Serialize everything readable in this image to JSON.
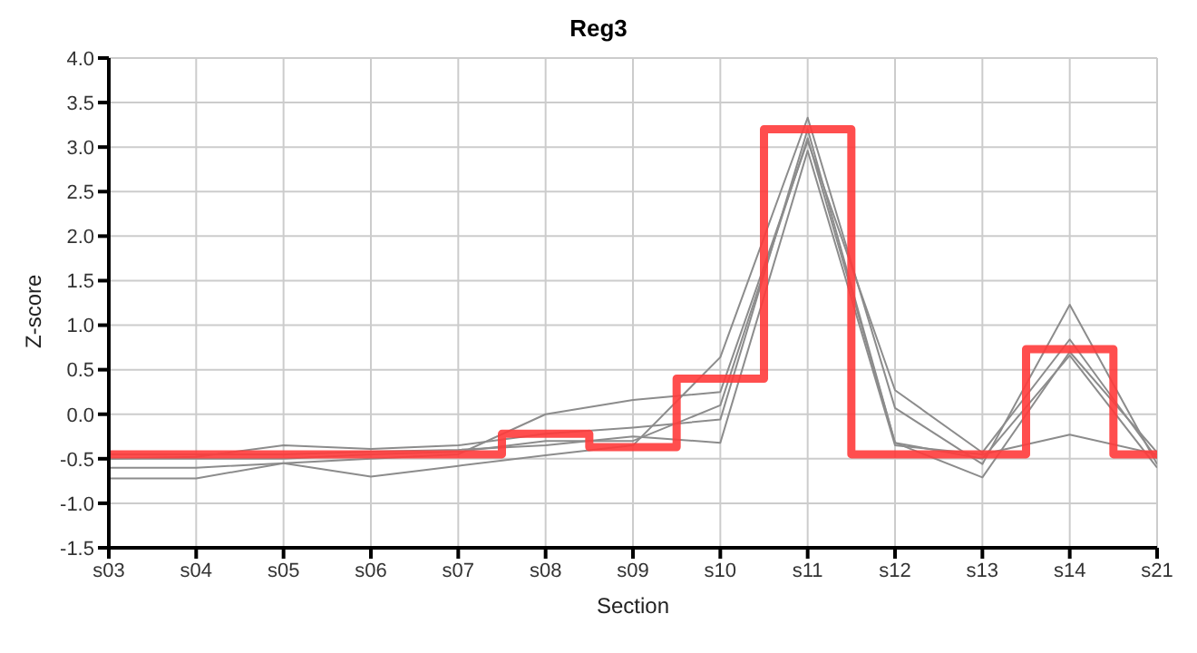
{
  "chart_data": {
    "type": "line",
    "title": "Reg3",
    "xlabel": "Section",
    "ylabel": "Z-score",
    "categories": [
      "s03",
      "s04",
      "s05",
      "s06",
      "s07",
      "s08",
      "s09",
      "s10",
      "s11",
      "s12",
      "s13",
      "s14",
      "s21"
    ],
    "series": [
      {
        "color": "#8c8c8c",
        "values": [
          -0.6,
          -0.6,
          -0.55,
          -0.5,
          -0.45,
          0.0,
          0.16,
          0.25,
          3.07,
          0.27,
          -0.43,
          0.84,
          -0.5
        ]
      },
      {
        "color": "#8c8c8c",
        "values": [
          -0.72,
          -0.72,
          -0.55,
          -0.7,
          -0.58,
          -0.46,
          -0.35,
          0.64,
          3.33,
          0.07,
          -0.56,
          1.23,
          -0.56
        ]
      },
      {
        "color": "#8c8c8c",
        "values": [
          -0.5,
          -0.48,
          -0.35,
          -0.39,
          -0.35,
          -0.22,
          -0.15,
          -0.06,
          3.2,
          -0.32,
          -0.71,
          0.7,
          -0.43
        ]
      },
      {
        "color": "#8c8c8c",
        "values": [
          -0.45,
          -0.45,
          -0.45,
          -0.42,
          -0.4,
          -0.35,
          -0.25,
          -0.32,
          2.96,
          -0.35,
          -0.45,
          -0.23,
          -0.45
        ]
      },
      {
        "color": "#8c8c8c",
        "values": [
          -0.5,
          -0.5,
          -0.5,
          -0.45,
          -0.42,
          -0.3,
          -0.3,
          0.1,
          3.1,
          -0.32,
          -0.5,
          0.66,
          -0.6
        ]
      },
      {
        "type": "step",
        "color": "#ff3b3b",
        "values": [
          -0.45,
          -0.45,
          -0.45,
          -0.45,
          -0.45,
          -0.22,
          -0.37,
          0.4,
          3.2,
          -0.45,
          -0.45,
          0.73,
          -0.45
        ]
      }
    ],
    "ylim": [
      -1.5,
      4.0
    ],
    "yticks": [
      {
        "value": -1.5,
        "label": "-1.5"
      },
      {
        "value": -1,
        "label": "-1.0"
      },
      {
        "value": -0.5,
        "label": "-0.5"
      },
      {
        "value": 0,
        "label": "0.0"
      },
      {
        "value": 0.5,
        "label": "0.5"
      },
      {
        "value": 1,
        "label": "1.0"
      },
      {
        "value": 1.5,
        "label": "1.5"
      },
      {
        "value": 2,
        "label": "2.0"
      },
      {
        "value": 2.5,
        "label": "2.5"
      },
      {
        "value": 3,
        "label": "3.0"
      },
      {
        "value": 3.5,
        "label": "3.5"
      },
      {
        "value": 4,
        "label": "4.0"
      }
    ],
    "grid": true,
    "marker": "none",
    "line_style": "solid"
  }
}
